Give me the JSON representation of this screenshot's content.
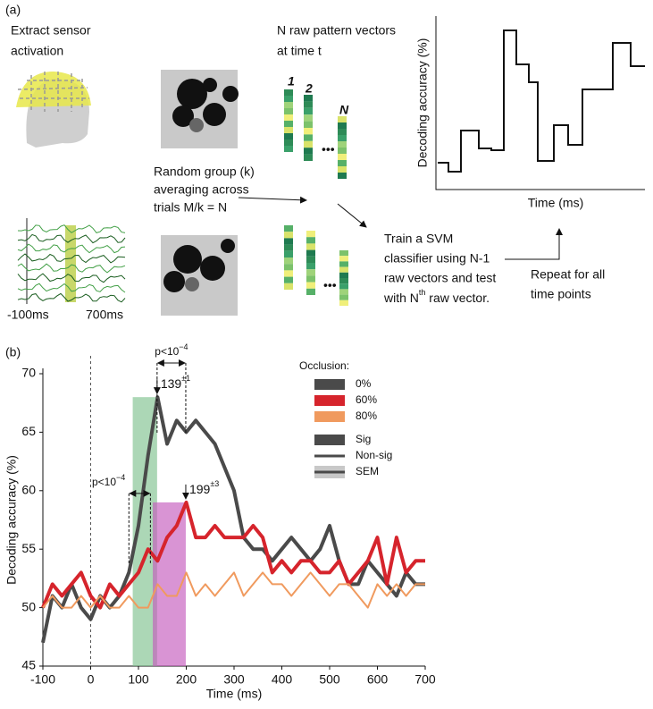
{
  "panel_a": {
    "label": "(a)",
    "extract": [
      "Extract sensor",
      "activation"
    ],
    "trace_axis": [
      "-100ms",
      "700ms"
    ],
    "vectors_title": [
      "N raw pattern vectors",
      "at time t"
    ],
    "vector_labels": [
      "1",
      "2",
      "N"
    ],
    "grouping": [
      "Random group (k)",
      "averaging across",
      "trials M/k = N"
    ],
    "svm": [
      "Train a SVM",
      "classifier using N-1",
      "raw vectors and test"
    ],
    "svm_last": [
      "with N",
      "th",
      " raw vector."
    ],
    "repeat": [
      "Repeat for all",
      "time points"
    ],
    "schematic_ylabel": "Decoding accuracy (%)",
    "schematic_xlabel": "Time (ms)"
  },
  "chart_data": {
    "type": "line",
    "panel_label": "(b)",
    "xlabel": "Time (ms)",
    "ylabel": "Decoding accuracy (%)",
    "x": [
      -100,
      -80,
      -60,
      -40,
      -20,
      0,
      20,
      40,
      60,
      80,
      100,
      120,
      140,
      160,
      180,
      200,
      220,
      240,
      260,
      280,
      300,
      320,
      340,
      360,
      380,
      400,
      420,
      440,
      460,
      480,
      500,
      520,
      540,
      560,
      580,
      600,
      620,
      640,
      660,
      680,
      700
    ],
    "series": [
      {
        "name": "0%",
        "color": "#4a4a4a",
        "values": [
          47,
          51,
          50,
          52,
          50,
          49,
          51,
          50,
          51,
          53,
          57,
          63,
          68,
          64,
          66,
          65,
          66,
          65,
          64,
          62,
          60,
          56,
          55,
          55,
          54,
          55,
          56,
          55,
          54,
          55,
          57,
          54,
          52,
          52,
          54,
          53,
          52,
          51,
          53,
          52,
          52
        ]
      },
      {
        "name": "60%",
        "color": "#d6242c",
        "values": [
          50,
          52,
          51,
          52,
          53,
          51,
          50,
          52,
          51,
          52,
          53,
          55,
          54,
          56,
          57,
          59,
          56,
          56,
          57,
          56,
          56,
          56,
          57,
          56,
          53,
          54,
          53,
          54,
          54,
          53,
          53,
          54,
          52,
          53,
          54,
          56,
          52,
          56,
          53,
          54,
          54
        ]
      },
      {
        "name": "80%",
        "color": "#f09a5e",
        "values": [
          50,
          51,
          50,
          50,
          51,
          50,
          51,
          50,
          50,
          51,
          50,
          50,
          52,
          51,
          51,
          53,
          51,
          52,
          51,
          52,
          53,
          51,
          52,
          53,
          52,
          52,
          51,
          52,
          53,
          52,
          51,
          52,
          52,
          51,
          50,
          52,
          51,
          52,
          51,
          52,
          52
        ]
      }
    ],
    "legend_title": "Occlusion:",
    "style_legend": [
      "Sig",
      "Non-sig",
      "SEM"
    ],
    "xlim": [
      -100,
      700
    ],
    "ylim": [
      45,
      70
    ],
    "xticks": [
      -100,
      0,
      100,
      200,
      300,
      400,
      500,
      600,
      700
    ],
    "yticks": [
      45,
      50,
      55,
      60,
      65,
      70
    ],
    "onset_line": 0,
    "spans": [
      {
        "x0": 88,
        "x1": 139,
        "top": 68,
        "color": "#7fc28f"
      },
      {
        "x0": 130,
        "x1": 199,
        "top": 59,
        "color": "#c45bbd"
      }
    ],
    "peaks": [
      {
        "x": 139,
        "sup": "±1"
      },
      {
        "x": 199,
        "sup": "±3"
      }
    ],
    "contrasts": [
      {
        "text": "p<10",
        "sup": "−4",
        "x": [
          139,
          199
        ]
      },
      {
        "text": "p<10",
        "sup": "−4",
        "x": [
          80,
          125
        ]
      }
    ]
  }
}
